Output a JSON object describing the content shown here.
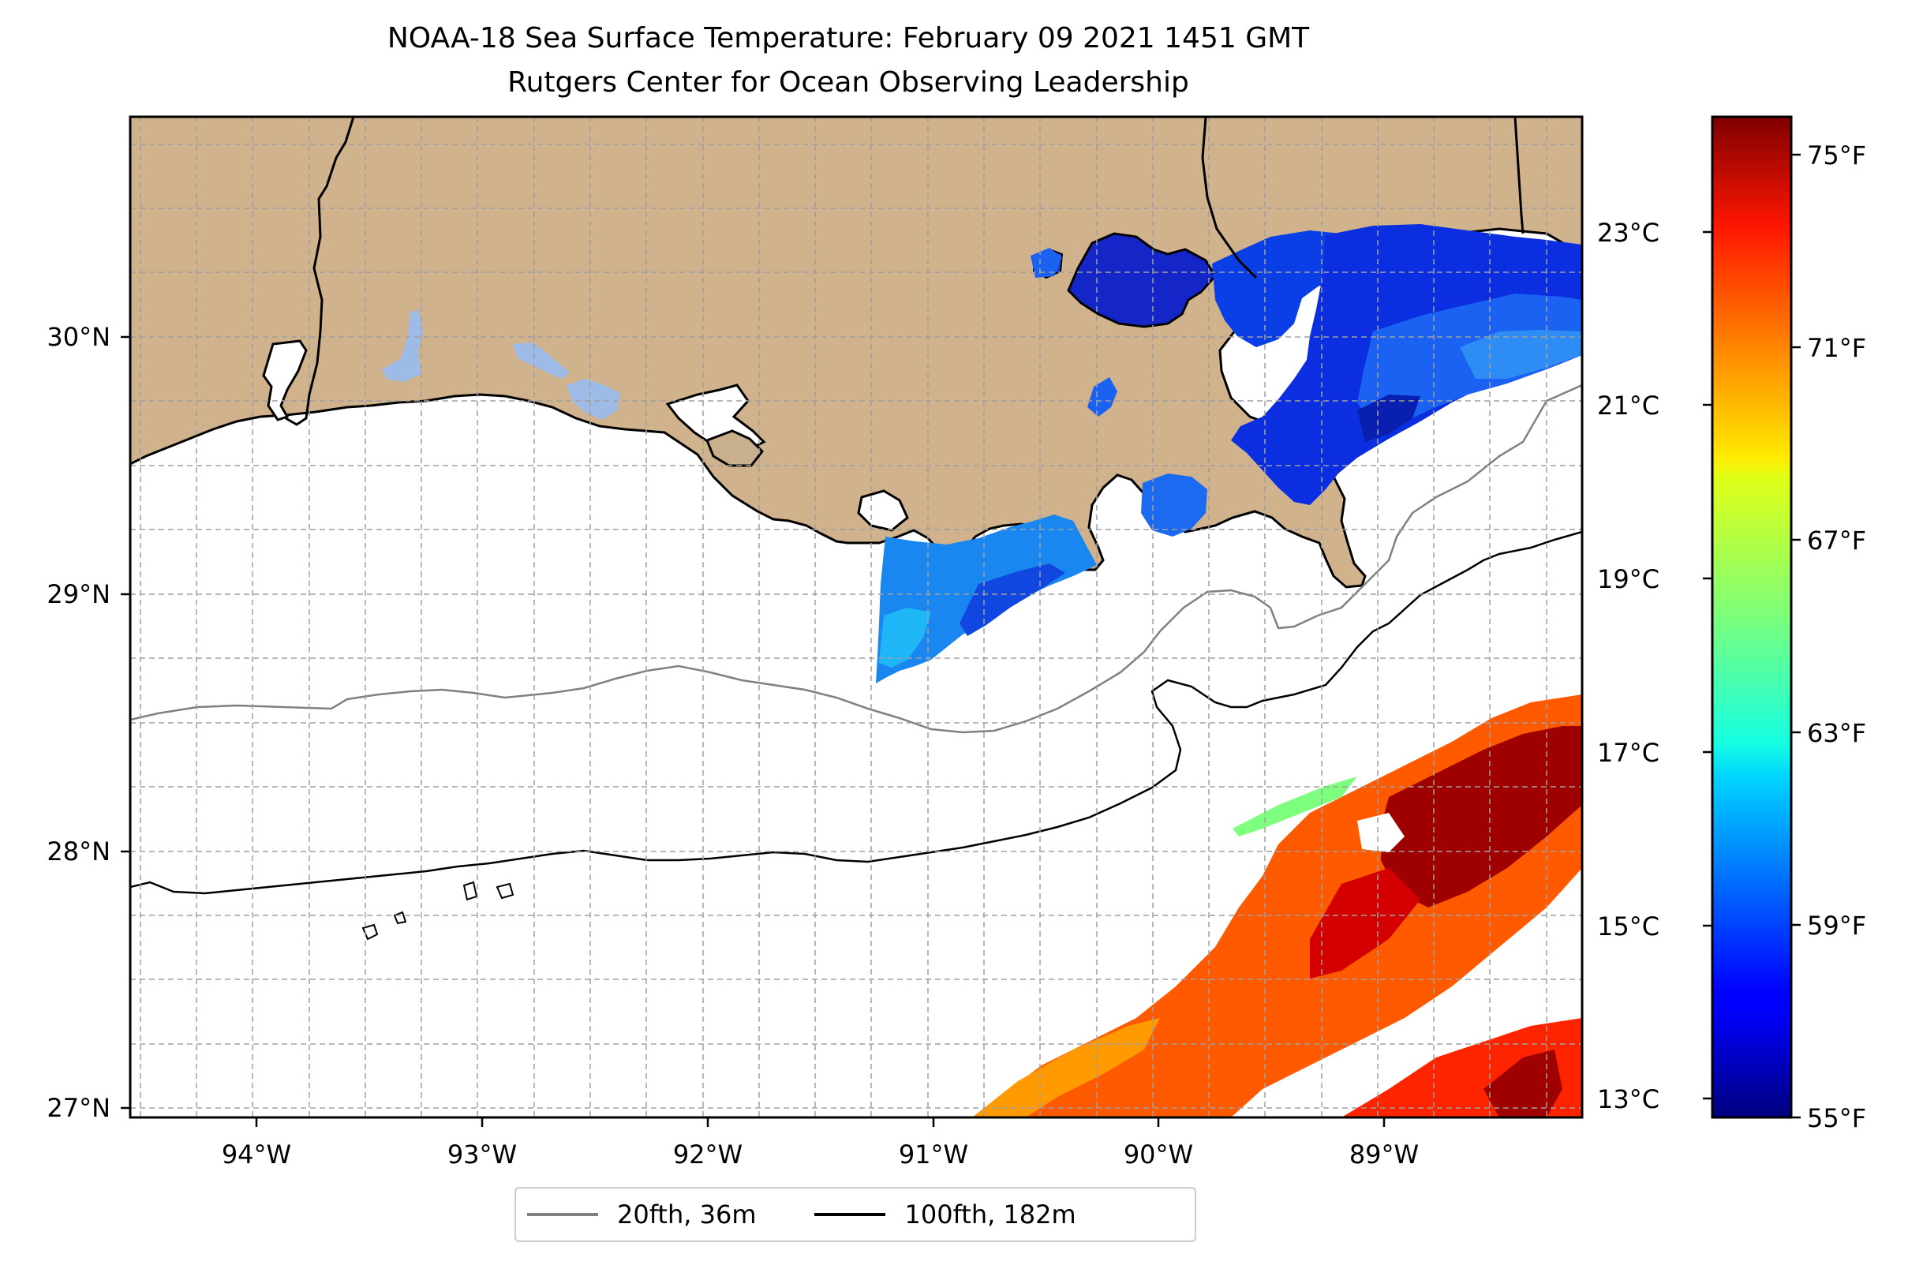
{
  "title": {
    "line1": "NOAA-18 Sea Surface Temperature: February 09 2021 1451 GMT",
    "line2": "Rutgers Center for Ocean Observing Leadership"
  },
  "map": {
    "lon_ticks": [
      "94°W",
      "93°W",
      "92°W",
      "91°W",
      "90°W",
      "89°W"
    ],
    "lat_ticks": [
      "30°N",
      "29°N",
      "28°N",
      "27°N"
    ],
    "lon_range": [
      -94.55,
      -88.2
    ],
    "lat_range": [
      26.95,
      30.85
    ],
    "land_color": "#d0b38c",
    "lake_color": "#9ebae6",
    "gridlines": true
  },
  "colorbar": {
    "colormap": "jet",
    "celsius_ticks": [
      "23°C",
      "21°C",
      "19°C",
      "17°C",
      "15°C",
      "13°C"
    ],
    "fahrenheit_ticks": [
      "75°F",
      "71°F",
      "67°F",
      "63°F",
      "59°F",
      "55°F"
    ],
    "range_f": [
      55,
      76.5
    ]
  },
  "legend": {
    "items": [
      {
        "label": "20fth, 36m",
        "color": "#808080"
      },
      {
        "label": "100fth, 182m",
        "color": "#000000"
      }
    ]
  }
}
